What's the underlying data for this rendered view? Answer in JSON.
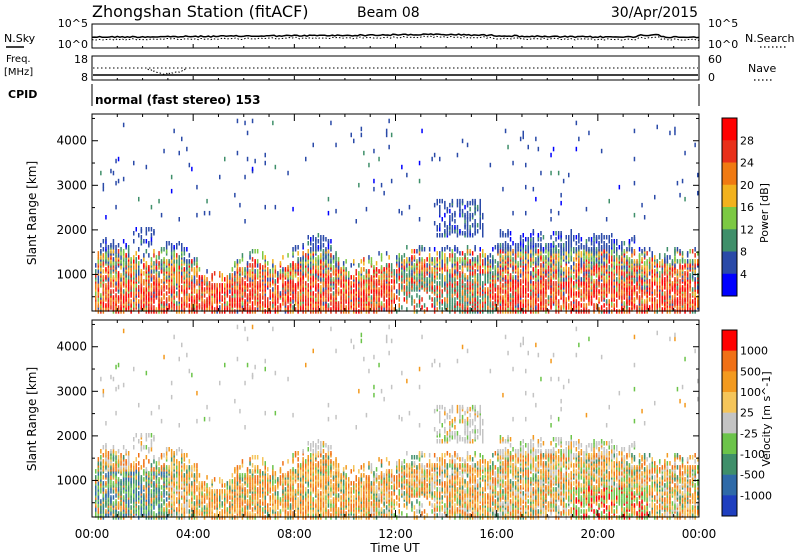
{
  "header": {
    "title": "Zhongshan Station (fitACF)",
    "beam": "Beam 08",
    "date": "30/Apr/2015"
  },
  "noise_panel": {
    "left_label": "N.Sky",
    "right_label": "N.Search",
    "left_ticks": [
      "10^5",
      "10^0"
    ],
    "right_ticks": [
      "10^5",
      "10^0"
    ]
  },
  "freq_panel": {
    "left_label_1": "Freq.",
    "left_label_2": "[MHz]",
    "right_label": "Nave",
    "left_ticks": [
      "18",
      "8"
    ],
    "right_ticks": [
      "60",
      "0"
    ]
  },
  "cpid_panel": {
    "label": "CPID",
    "text": "normal (fast stereo) 153"
  },
  "x_axis": {
    "label": "Time UT",
    "ticks": [
      "00:00",
      "04:00",
      "08:00",
      "12:00",
      "16:00",
      "20:00",
      "00:00"
    ]
  },
  "chart_data": [
    {
      "type": "heatmap",
      "name": "power",
      "ylabel": "Slant Range [km]",
      "yticks": [
        "1000",
        "2000",
        "3000",
        "4000"
      ],
      "ylim": [
        180,
        4600
      ],
      "xlim_hours": [
        0,
        24
      ],
      "colorbar_label": "Power [dB]",
      "colorbar_ticks": [
        "4",
        "8",
        "12",
        "16",
        "20",
        "24",
        "28"
      ],
      "colorbar_colors": [
        "#0000ff",
        "#2a4aa8",
        "#3f8f6a",
        "#7cc943",
        "#f2b21e",
        "#f07a12",
        "#e8301a",
        "#ff0000"
      ]
    },
    {
      "type": "heatmap",
      "name": "velocity",
      "ylabel": "Slant Range [km]",
      "yticks": [
        "1000",
        "2000",
        "3000",
        "4000"
      ],
      "ylim": [
        180,
        4600
      ],
      "xlim_hours": [
        0,
        24
      ],
      "colorbar_label": "Velocity [m s^-1]",
      "colorbar_ticks": [
        "1000",
        "500",
        "100",
        "25",
        "-25",
        "-100",
        "-500",
        "-1000"
      ],
      "colorbar_colors": [
        "#1f3fbf",
        "#2f6aa8",
        "#3f8f6a",
        "#6cc44a",
        "#c4c4c4",
        "#f5c55a",
        "#f39a1f",
        "#f07016",
        "#ff0000"
      ]
    }
  ]
}
